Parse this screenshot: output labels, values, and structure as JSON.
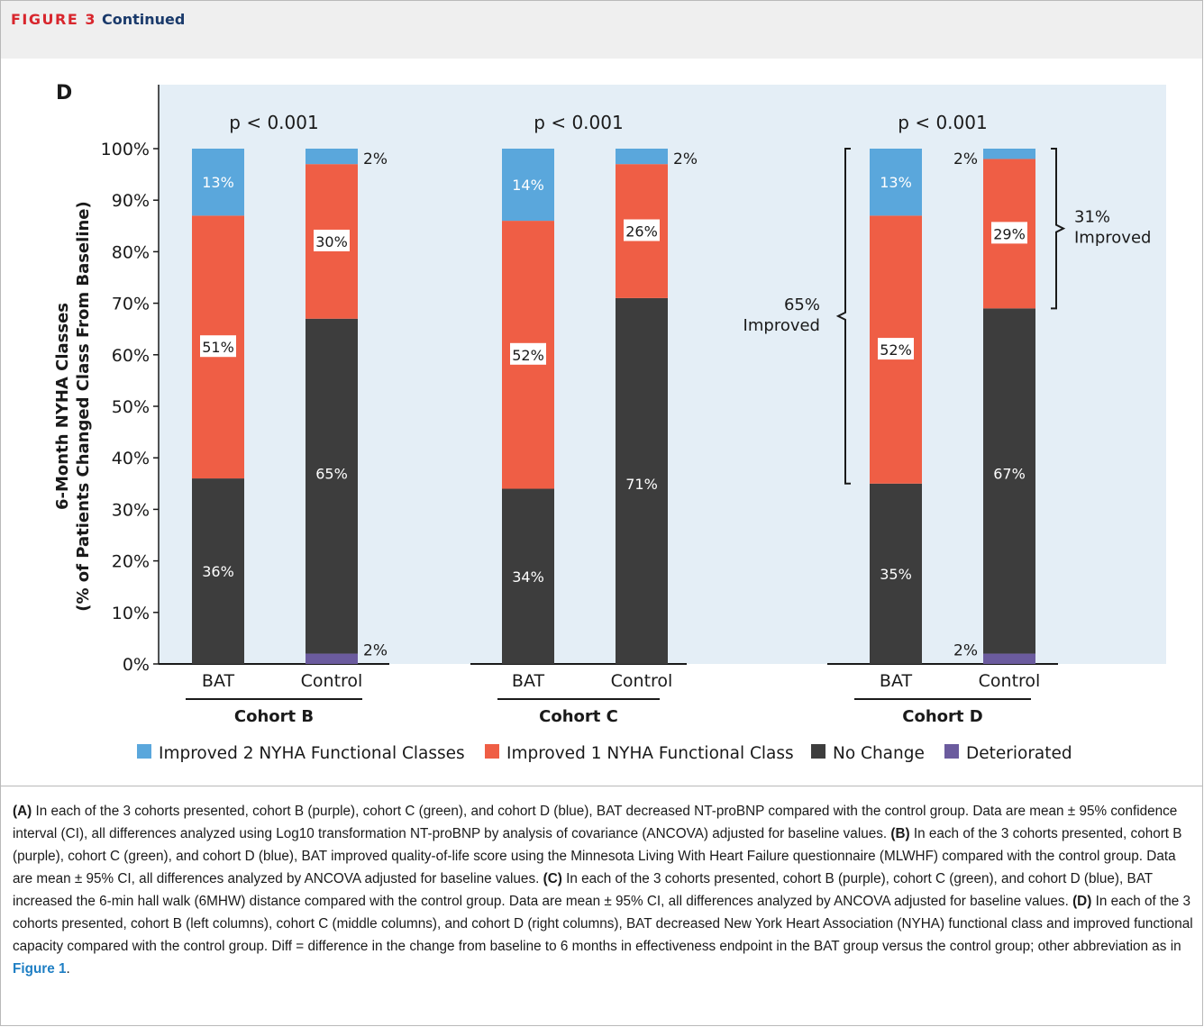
{
  "figure_header": {
    "number": "FIGURE 3",
    "continued": "Continued"
  },
  "panel_letter": "D",
  "chart_data": {
    "type": "bar",
    "stacked": true,
    "ylabel": "6-Month NYHA Classes",
    "ylabel_sub": "(% of Patients Changed Class From Baseline)",
    "ylim": [
      0,
      100
    ],
    "yticks": [
      "0%",
      "10%",
      "20%",
      "30%",
      "40%",
      "50%",
      "60%",
      "70%",
      "80%",
      "90%",
      "100%"
    ],
    "grid": false,
    "background": "#e4eef6",
    "legend_position": "bottom",
    "legend": [
      {
        "name": "Improved 2 NYHA Functional Classes",
        "color": "#5aa7dc"
      },
      {
        "name": "Improved 1 NYHA Functional Class",
        "color": "#ef5e45"
      },
      {
        "name": "No Change",
        "color": "#3d3d3d"
      },
      {
        "name": "Deteriorated",
        "color": "#6b5b9e"
      }
    ],
    "groups": [
      {
        "label": "Cohort B",
        "pvalue": "p < 0.001",
        "bars": [
          {
            "label": "BAT",
            "segments": [
              {
                "series": "Deteriorated",
                "value": 0,
                "label": ""
              },
              {
                "series": "No Change",
                "value": 36,
                "label": "36%"
              },
              {
                "series": "Improved 1 NYHA Functional Class",
                "value": 51,
                "label": "51%"
              },
              {
                "series": "Improved 2 NYHA Functional Classes",
                "value": 13,
                "label": "13%"
              }
            ]
          },
          {
            "label": "Control",
            "segments": [
              {
                "series": "Deteriorated",
                "value": 2,
                "label": "2%"
              },
              {
                "series": "No Change",
                "value": 65,
                "label": "65%"
              },
              {
                "series": "Improved 1 NYHA Functional Class",
                "value": 30,
                "label": "30%"
              },
              {
                "series": "Improved 2 NYHA Functional Classes",
                "value": 2,
                "label": "2%"
              }
            ]
          }
        ]
      },
      {
        "label": "Cohort C",
        "pvalue": "p < 0.001",
        "bars": [
          {
            "label": "BAT",
            "segments": [
              {
                "series": "Deteriorated",
                "value": 0,
                "label": ""
              },
              {
                "series": "No Change",
                "value": 34,
                "label": "34%"
              },
              {
                "series": "Improved 1 NYHA Functional Class",
                "value": 52,
                "label": "52%"
              },
              {
                "series": "Improved 2 NYHA Functional Classes",
                "value": 14,
                "label": "14%"
              }
            ]
          },
          {
            "label": "Control",
            "segments": [
              {
                "series": "Deteriorated",
                "value": 0,
                "label": ""
              },
              {
                "series": "No Change",
                "value": 71,
                "label": "71%"
              },
              {
                "series": "Improved 1 NYHA Functional Class",
                "value": 26,
                "label": "26%"
              },
              {
                "series": "Improved 2 NYHA Functional Classes",
                "value": 2,
                "label": "2%"
              }
            ]
          }
        ]
      },
      {
        "label": "Cohort D",
        "pvalue": "p < 0.001",
        "bars": [
          {
            "label": "BAT",
            "segments": [
              {
                "series": "Deteriorated",
                "value": 0,
                "label": ""
              },
              {
                "series": "No Change",
                "value": 35,
                "label": "35%"
              },
              {
                "series": "Improved 1 NYHA Functional Class",
                "value": 52,
                "label": "52%"
              },
              {
                "series": "Improved 2 NYHA Functional Classes",
                "value": 13,
                "label": "13%"
              }
            ]
          },
          {
            "label": "Control",
            "segments": [
              {
                "series": "Deteriorated",
                "value": 2,
                "label": "2%"
              },
              {
                "series": "No Change",
                "value": 67,
                "label": "67%"
              },
              {
                "series": "Improved 1 NYHA Functional Class",
                "value": 29,
                "label": "29%"
              },
              {
                "series": "Improved 2 NYHA Functional Classes",
                "value": 2,
                "label": "2%"
              }
            ]
          }
        ]
      }
    ],
    "annotations": [
      {
        "text": "65% Improved",
        "lines": [
          "65%",
          "Improved"
        ],
        "target": "Cohort D BAT"
      },
      {
        "text": "31% Improved",
        "lines": [
          "31%",
          "Improved"
        ],
        "target": "Cohort D Control"
      }
    ]
  },
  "caption": {
    "paragraphs": [
      {
        "label": "(A)",
        "text": " In each of the 3 cohorts presented, cohort B (purple), cohort C (green), and cohort D (blue), BAT decreased NT-proBNP compared with the control group. Data are mean ± 95% confidence interval (CI), all differences analyzed using Log10 transformation NT-proBNP by analysis of covariance (ANCOVA) adjusted for baseline values. "
      },
      {
        "label": "(B)",
        "text": " In each of the 3 cohorts presented, cohort B (purple), cohort C (green), and cohort D (blue), BAT improved quality-of-life score using the Minnesota Living With Heart Failure questionnaire (MLWHF) compared with the control group. Data are mean ± 95% CI, all differences analyzed by ANCOVA adjusted for baseline values. "
      },
      {
        "label": "(C)",
        "text": " In each of the 3 cohorts presented, cohort B (purple), cohort C (green), and cohort D (blue), BAT increased the 6-min hall walk (6MHW) distance compared with the control group. Data are mean ± 95% CI, all differences analyzed by ANCOVA adjusted for baseline values. "
      },
      {
        "label": "(D)",
        "text": " In each of the 3 cohorts presented, cohort B (left columns), cohort C (middle columns), and cohort D (right columns), BAT decreased New York Heart Association (NYHA) functional class and improved functional capacity compared with the control group. Diff = difference in the change from baseline to 6 months in effectiveness endpoint in the BAT group versus the control group; other abbreviation as in "
      }
    ],
    "link": "Figure 1",
    "end": "."
  }
}
